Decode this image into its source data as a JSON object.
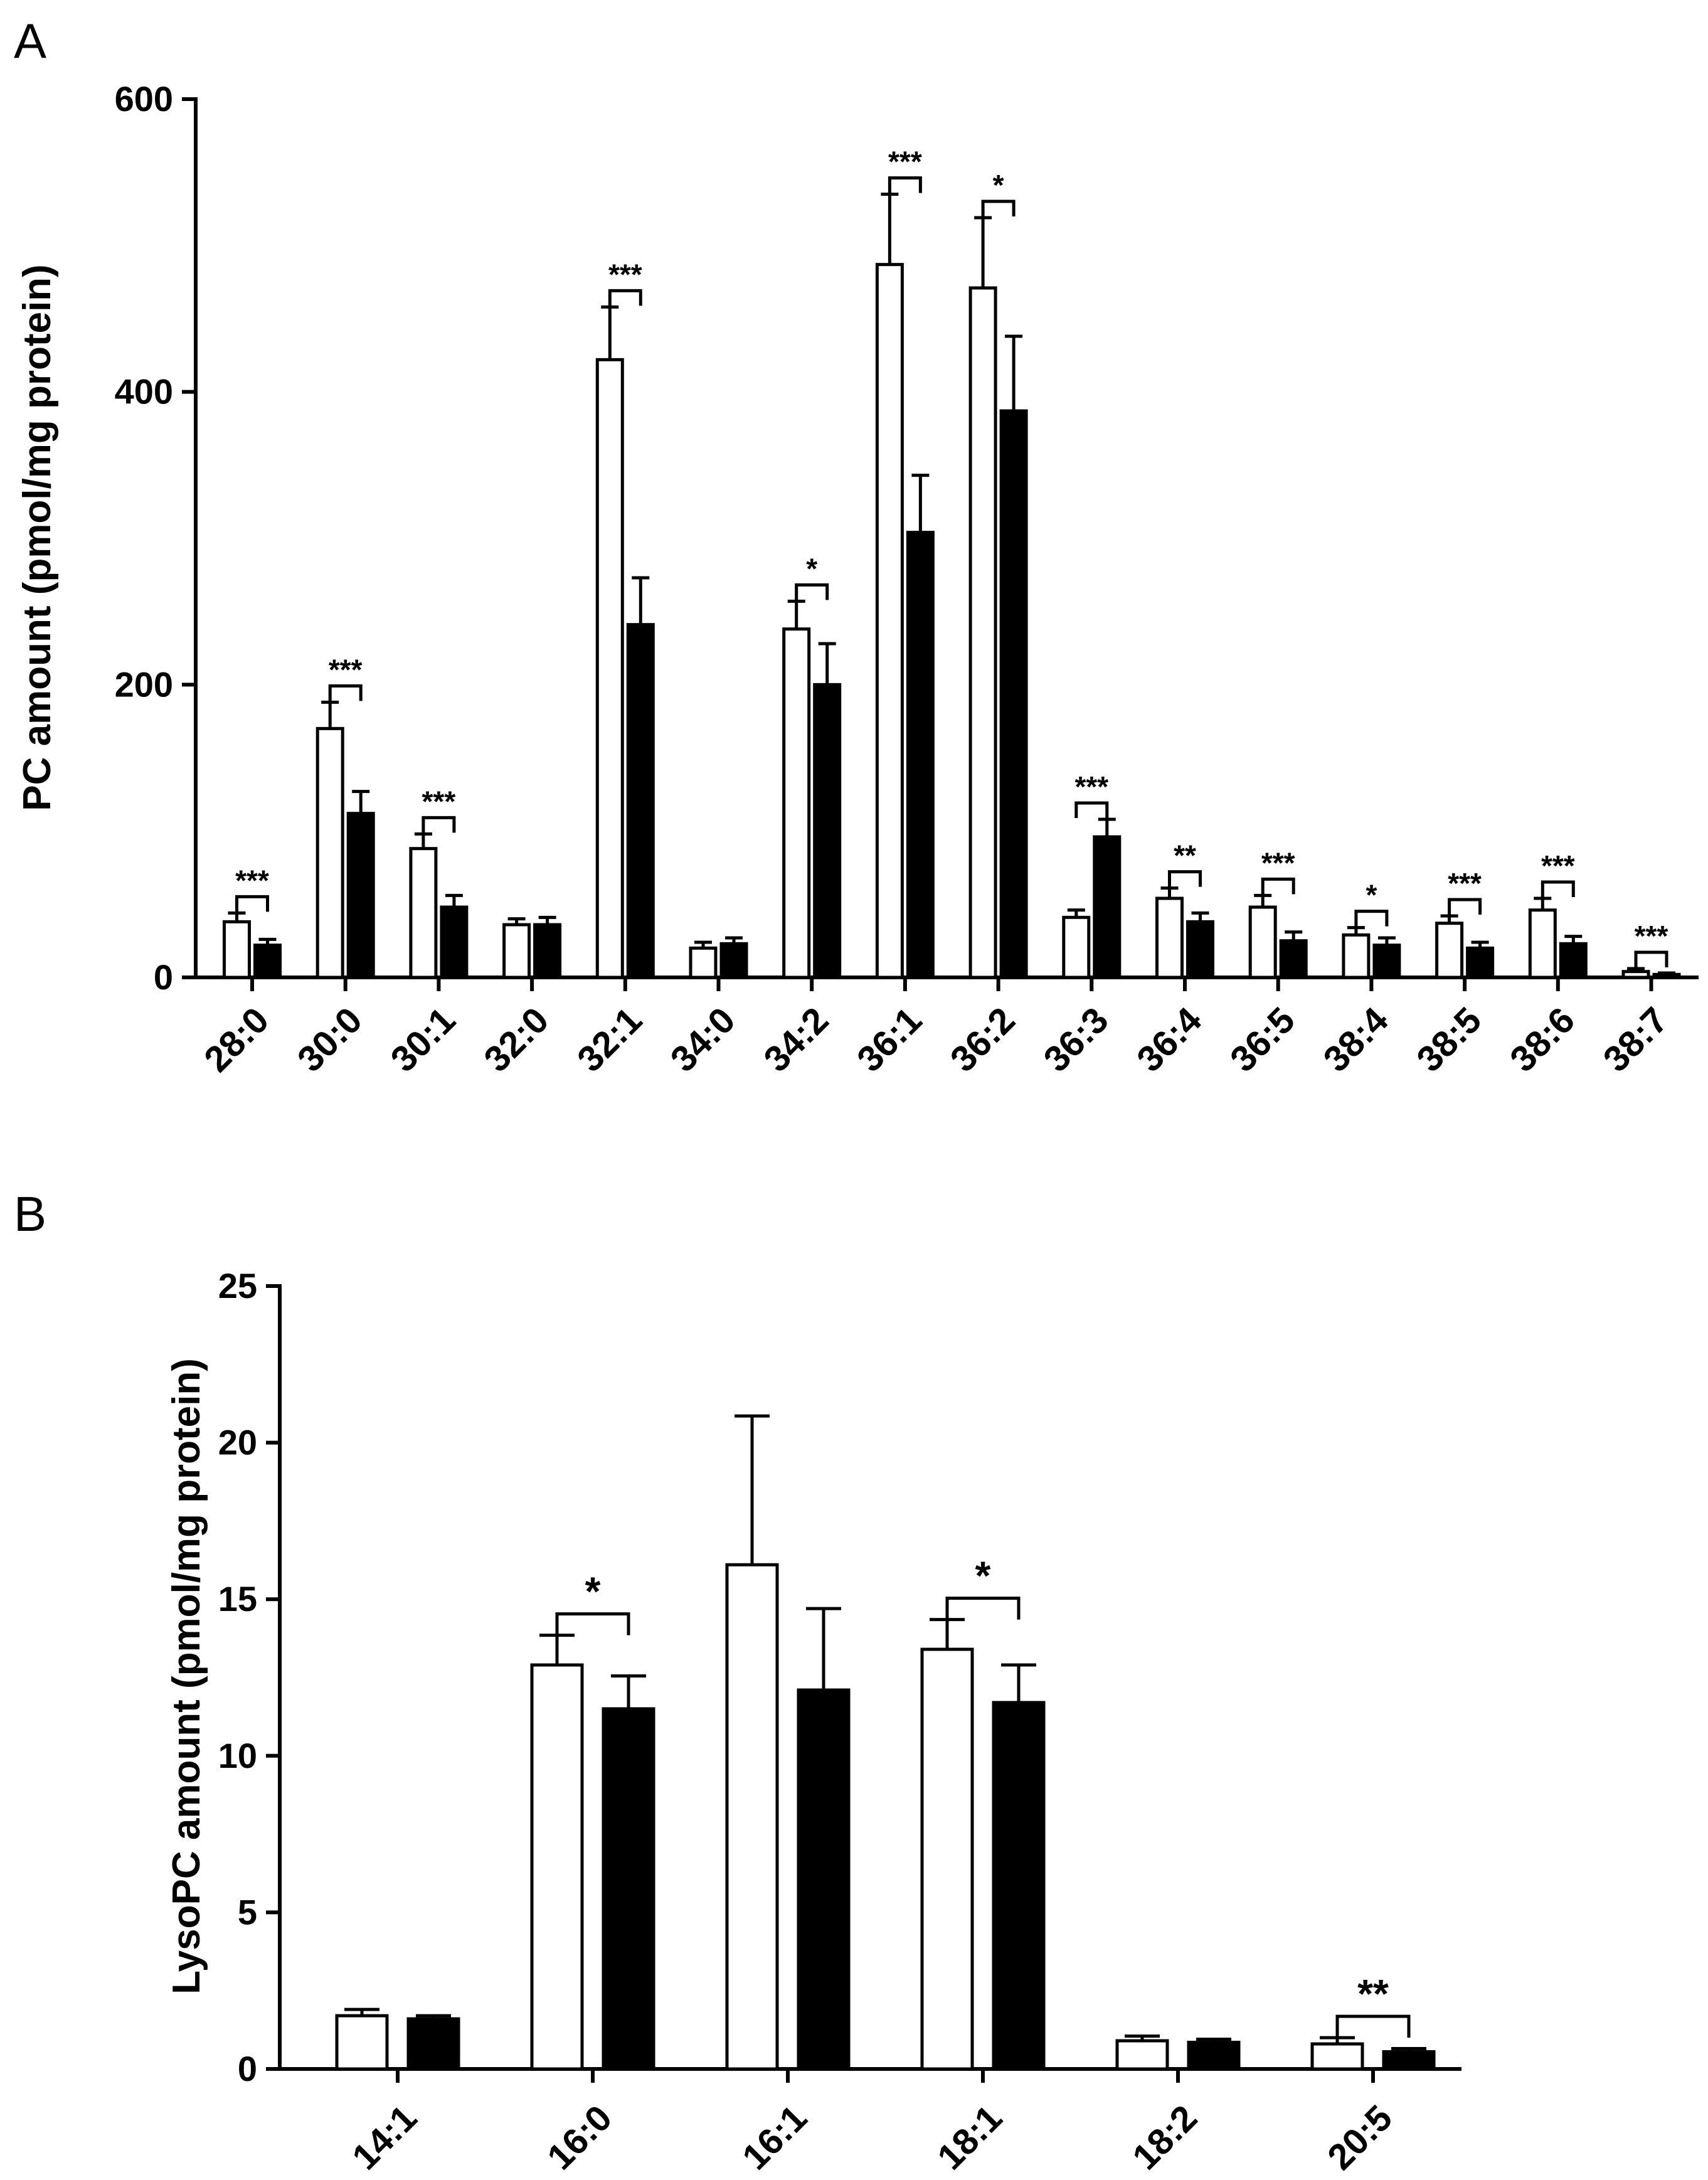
{
  "chart_data": [
    {
      "type": "bar",
      "panel": "A",
      "ylabel": "PC amount (pmol/mg protein)",
      "xlabel": "",
      "ylim": [
        0,
        600
      ],
      "yticks": [
        0,
        200,
        400,
        600
      ],
      "categories": [
        "28:0",
        "30:0",
        "30:1",
        "32:0",
        "32:1",
        "34:0",
        "34:2",
        "36:1",
        "36:2",
        "36:3",
        "36:4",
        "36:5",
        "38:4",
        "38:5",
        "38:6",
        "38:7"
      ],
      "series": [
        {
          "name": "open",
          "fill": "#ffffff",
          "values": [
            38,
            170,
            88,
            36,
            422,
            20,
            238,
            487,
            471,
            41,
            54,
            48,
            29,
            37,
            46,
            4
          ],
          "errors": [
            6,
            18,
            10,
            4,
            36,
            4,
            19,
            48,
            48,
            5,
            7,
            8,
            5,
            5,
            8,
            2
          ]
        },
        {
          "name": "filled",
          "fill": "#000000",
          "values": [
            22,
            112,
            48,
            36,
            241,
            23,
            200,
            304,
            387,
            96,
            38,
            25,
            22,
            20,
            23,
            2
          ],
          "errors": [
            4,
            15,
            8,
            5,
            32,
            4,
            28,
            39,
            51,
            12,
            6,
            6,
            5,
            4,
            5,
            1
          ]
        }
      ],
      "significance": [
        "***",
        "***",
        "***",
        "",
        "***",
        "",
        "*",
        "***",
        "*",
        "***",
        "**",
        "***",
        "*",
        "***",
        "***",
        "***"
      ]
    },
    {
      "type": "bar",
      "panel": "B",
      "ylabel": "LysoPC amount (pmol/mg protein)",
      "xlabel": "",
      "ylim": [
        0,
        25
      ],
      "yticks": [
        0,
        5,
        10,
        15,
        20,
        25
      ],
      "categories": [
        "14:1",
        "16:0",
        "16:1",
        "18:1",
        "18:2",
        "20:5"
      ],
      "series": [
        {
          "name": "open",
          "fill": "#ffffff",
          "values": [
            1.7,
            12.9,
            16.1,
            13.4,
            0.9,
            0.8
          ],
          "errors": [
            0.2,
            0.95,
            4.75,
            0.95,
            0.15,
            0.2
          ]
        },
        {
          "name": "filled",
          "fill": "#000000",
          "values": [
            1.6,
            11.5,
            12.1,
            11.7,
            0.85,
            0.55
          ],
          "errors": [
            0.1,
            1.05,
            2.6,
            1.2,
            0.1,
            0.1
          ]
        }
      ],
      "significance": [
        "",
        "*",
        "",
        "*",
        "",
        "**"
      ]
    }
  ]
}
